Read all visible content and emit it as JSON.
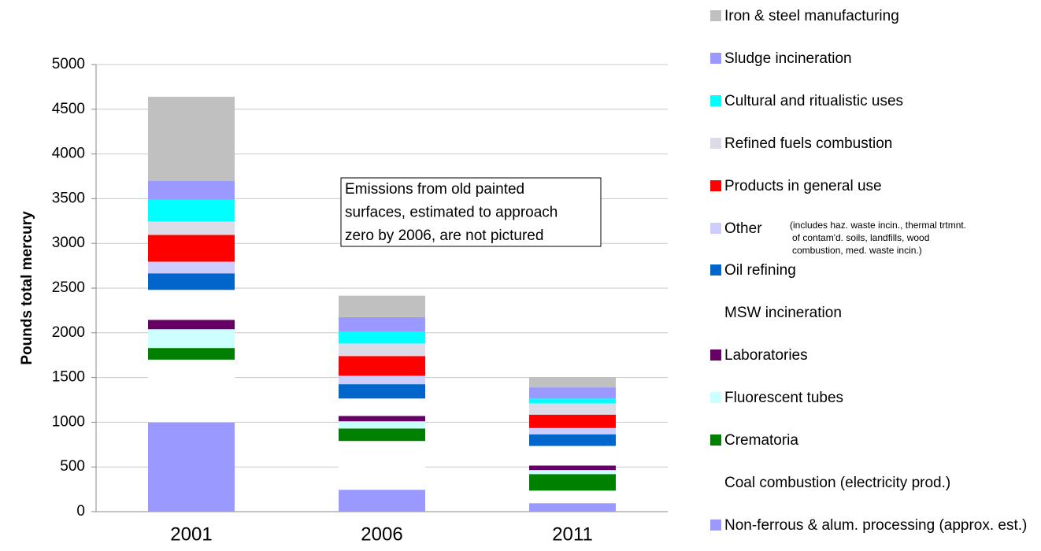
{
  "chart_data": {
    "type": "stacked_bar",
    "y_label": "Pounds total mercury",
    "categories": [
      "2001",
      "2006",
      "2011"
    ],
    "ylim": [
      0,
      5000
    ],
    "yticks": [
      0,
      500,
      1000,
      1500,
      2000,
      2500,
      3000,
      3500,
      4000,
      4500,
      5000
    ],
    "grid": true,
    "legend": "right",
    "annotation": [
      "Emissions from old painted",
      "surfaces, estimated to approach",
      "zero by 2006, are not pictured"
    ],
    "legend_note": [
      "(includes haz. waste incin., thermal trtmnt.",
      "of contam'd. soils, landfills, wood",
      "combustion, med. waste incin.)"
    ],
    "series": [
      {
        "name": "Non-ferrous & alum. processing (approx. est.)",
        "color": "#9999ff",
        "values": [
          1000,
          245,
          95
        ]
      },
      {
        "name": "Coal combustion (electricity prod.)",
        "color": "#ffffff",
        "values": [
          700,
          545,
          140
        ]
      },
      {
        "name": "Crematoria",
        "color": "#008000",
        "values": [
          130,
          140,
          185
        ]
      },
      {
        "name": "Fluorescent tubes",
        "color": "#ccffff",
        "values": [
          210,
          80,
          45
        ]
      },
      {
        "name": "Laboratories",
        "color": "#660066",
        "values": [
          105,
          60,
          50
        ]
      },
      {
        "name": "MSW incineration",
        "color": "#ffffff",
        "values": [
          335,
          195,
          220
        ]
      },
      {
        "name": "Oil refining",
        "color": "#0066cc",
        "values": [
          185,
          160,
          130
        ]
      },
      {
        "name": "Other",
        "color": "#ccccff",
        "values": [
          130,
          95,
          70
        ]
      },
      {
        "name": "Products in general use",
        "color": "#ff0000",
        "values": [
          300,
          220,
          150
        ]
      },
      {
        "name": "Refined fuels combustion",
        "color": "#dcdce8",
        "values": [
          150,
          140,
          125
        ]
      },
      {
        "name": "Cultural and ritualistic uses",
        "color": "#00ffff",
        "values": [
          245,
          130,
          55
        ]
      },
      {
        "name": "Sludge incineration",
        "color": "#9999ff",
        "values": [
          210,
          165,
          125
        ]
      },
      {
        "name": "Iron & steel manufacturing",
        "color": "#c0c0c0",
        "values": [
          940,
          240,
          115
        ]
      }
    ]
  }
}
